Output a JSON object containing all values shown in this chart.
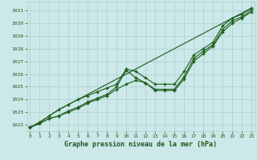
{
  "title": "Graphe pression niveau de la mer (hPa)",
  "background_color": "#cce8e8",
  "grid_color": "#aacfcf",
  "line_color": "#1a5c1a",
  "tick_color": "#1a5c1a",
  "x_ticks": [
    0,
    1,
    2,
    3,
    4,
    5,
    6,
    7,
    8,
    9,
    10,
    11,
    12,
    13,
    14,
    15,
    16,
    17,
    18,
    19,
    20,
    21,
    22,
    23
  ],
  "ylim": [
    1021.5,
    1031.7
  ],
  "xlim": [
    -0.3,
    23.3
  ],
  "yticks": [
    1022,
    1023,
    1024,
    1025,
    1026,
    1027,
    1028,
    1029,
    1030,
    1031
  ],
  "line1": [
    1021.8,
    1022.1,
    1022.5,
    1022.7,
    1023.1,
    1023.4,
    1023.8,
    1024.1,
    1024.4,
    1025.0,
    1026.3,
    1025.7,
    1025.3,
    1024.8,
    1024.8,
    1024.8,
    1025.8,
    1027.2,
    1027.8,
    1028.3,
    1029.5,
    1030.2,
    1030.5,
    1031.05
  ],
  "line2": [
    1021.8,
    1022.1,
    1022.5,
    1022.7,
    1023.0,
    1023.3,
    1023.7,
    1024.0,
    1024.3,
    1024.8,
    1025.2,
    1025.5,
    1025.3,
    1024.7,
    1024.7,
    1024.7,
    1025.6,
    1027.0,
    1027.6,
    1028.2,
    1029.3,
    1030.0,
    1030.4,
    1030.9
  ],
  "line3": [
    1021.8,
    1022.2,
    1022.7,
    1023.2,
    1023.6,
    1024.0,
    1024.3,
    1024.6,
    1024.9,
    1025.2,
    1026.4,
    1026.2,
    1025.7,
    1025.2,
    1025.2,
    1025.2,
    1026.2,
    1027.5,
    1028.0,
    1028.5,
    1029.8,
    1030.4,
    1030.7,
    1031.2
  ],
  "line4_straight": [
    1021.8,
    1022.2,
    1022.7,
    1023.2,
    1023.6,
    1024.0,
    1024.4,
    1024.8,
    1025.2,
    1025.6,
    1026.0,
    1026.4,
    1026.8,
    1027.2,
    1027.6,
    1028.0,
    1028.4,
    1028.8,
    1029.2,
    1029.6,
    1030.0,
    1030.4,
    1030.8,
    1031.2
  ]
}
